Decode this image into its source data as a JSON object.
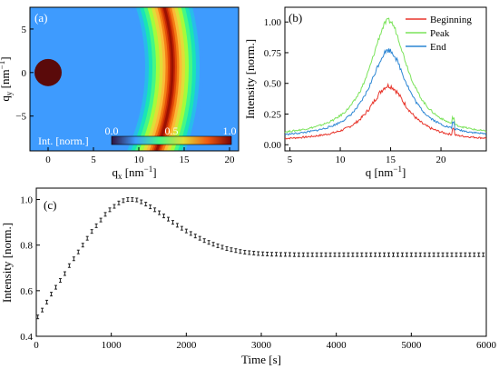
{
  "chart_data": [
    {
      "panel_label": "(a)",
      "type": "heatmap",
      "xlabel": "q",
      "xlabel_sub": "x",
      "xlabel_unit": " [nm",
      "xlabel_unit_sup": "−1",
      "xlabel_unit_end": "]",
      "ylabel": "q",
      "ylabel_sub": "y",
      "ylabel_unit": " [nm",
      "ylabel_unit_sup": "−1",
      "ylabel_unit_end": "]",
      "xlim": [
        -2,
        21
      ],
      "ylim": [
        -9,
        7.5
      ],
      "xticks": [
        "0",
        "5",
        "10",
        "15",
        "20"
      ],
      "yticks": [
        "5",
        "0",
        "−5"
      ],
      "ring_center_x": -11.3,
      "ring_center_y": 0.6,
      "ring_peak_radius": 25.0,
      "beamstop": {
        "x": 0.0,
        "y": 0.0,
        "radius": 1.5
      },
      "colorbar": {
        "label": "Int. [norm.]",
        "ticks": [
          "0.0",
          "0.5",
          "1.0"
        ],
        "colors": [
          "#30123b",
          "#3e9bfe",
          "#46f884",
          "#e1dd37",
          "#f05b12",
          "#7a0403"
        ]
      }
    },
    {
      "panel_label": "(b)",
      "type": "line",
      "xlabel": "q [nm",
      "xlabel_sup": "−1",
      "xlabel_end": "]",
      "ylabel": "Intensity [norm.]",
      "xlim": [
        4.5,
        24.5
      ],
      "ylim": [
        -0.05,
        1.12
      ],
      "xticks": [
        "5",
        "10",
        "15",
        "20"
      ],
      "yticks": [
        "0.00",
        "0.25",
        "0.50",
        "0.75",
        "1.00"
      ],
      "series": [
        {
          "name": "Beginning",
          "color": "#e8352b",
          "baseline": 0.03,
          "peak": 0.48
        },
        {
          "name": "Peak",
          "color": "#7be35a",
          "baseline": 0.06,
          "peak": 1.01
        },
        {
          "name": "End",
          "color": "#2c86d4",
          "baseline": 0.05,
          "peak": 0.77
        }
      ],
      "peak_position": 14.8,
      "peak_width": 2.3,
      "legend": "top-right"
    },
    {
      "panel_label": "(c)",
      "type": "scatter",
      "marker": "errorbar",
      "xlabel": "Time [s]",
      "ylabel": "Intensity [norm.]",
      "xlim": [
        0,
        6000
      ],
      "ylim": [
        0.4,
        1.05
      ],
      "xticks": [
        "0",
        "1000",
        "2000",
        "3000",
        "4000",
        "5000",
        "6000"
      ],
      "yticks": [
        "0.4",
        "0.6",
        "0.8",
        "1.0"
      ],
      "x": [
        20,
        80,
        140,
        200,
        260,
        320,
        380,
        440,
        500,
        560,
        620,
        680,
        740,
        800,
        860,
        920,
        980,
        1040,
        1100,
        1160,
        1220,
        1280,
        1340,
        1400,
        1460,
        1520,
        1580,
        1640,
        1700,
        1760,
        1820,
        1880,
        1940,
        2000,
        2060,
        2120,
        2180,
        2240,
        2300,
        2360,
        2420,
        2480,
        2540,
        2600,
        2660,
        2720,
        2780,
        2840,
        2900,
        2960,
        3020,
        3080,
        3140,
        3200,
        3260,
        3320,
        3380,
        3440,
        3500,
        3560,
        3620,
        3680,
        3740,
        3800,
        3860,
        3920,
        3980,
        4040,
        4100,
        4160,
        4220,
        4280,
        4340,
        4400,
        4460,
        4520,
        4580,
        4640,
        4700,
        4760,
        4820,
        4880,
        4940,
        5000,
        5060,
        5120,
        5180,
        5240,
        5300,
        5360,
        5420,
        5480,
        5540,
        5600,
        5660,
        5720,
        5780,
        5840,
        5900,
        5960
      ],
      "y": [
        0.485,
        0.515,
        0.55,
        0.585,
        0.615,
        0.645,
        0.675,
        0.71,
        0.74,
        0.77,
        0.8,
        0.83,
        0.86,
        0.885,
        0.91,
        0.935,
        0.955,
        0.97,
        0.985,
        0.995,
        1.0,
        1.0,
        0.998,
        0.99,
        0.98,
        0.968,
        0.955,
        0.942,
        0.928,
        0.914,
        0.9,
        0.887,
        0.874,
        0.862,
        0.851,
        0.84,
        0.83,
        0.82,
        0.812,
        0.804,
        0.797,
        0.791,
        0.785,
        0.78,
        0.776,
        0.772,
        0.769,
        0.767,
        0.765,
        0.763,
        0.762,
        0.761,
        0.76,
        0.76,
        0.759,
        0.759,
        0.759,
        0.758,
        0.758,
        0.758,
        0.758,
        0.758,
        0.758,
        0.758,
        0.758,
        0.758,
        0.758,
        0.758,
        0.758,
        0.758,
        0.758,
        0.758,
        0.758,
        0.758,
        0.758,
        0.758,
        0.758,
        0.758,
        0.758,
        0.758,
        0.758,
        0.758,
        0.758,
        0.758,
        0.758,
        0.758,
        0.758,
        0.758,
        0.758,
        0.758,
        0.758,
        0.758,
        0.758,
        0.758,
        0.758,
        0.758,
        0.758,
        0.758,
        0.758,
        0.758
      ],
      "error": 0.008
    }
  ]
}
